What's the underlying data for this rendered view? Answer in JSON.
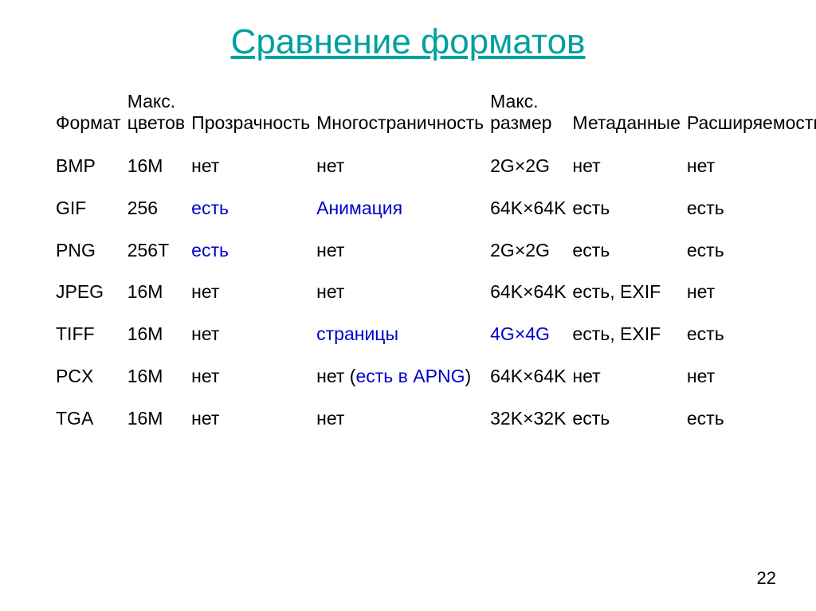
{
  "title": "Сравнение форматов",
  "page_number": "22",
  "headers": {
    "format": "Формат",
    "colors": "Макс. цветов",
    "transparency": "Прозрачность",
    "multipage": "Многостраничность",
    "size": "Макс. размер",
    "metadata": "Метаданные",
    "extensibility": "Расширяемость"
  },
  "rows": [
    {
      "format": "BMP",
      "colors": {
        "text": "16M",
        "hl": false
      },
      "trans": {
        "text": "нет",
        "hl": false
      },
      "multi": [
        {
          "text": "нет",
          "hl": false
        }
      ],
      "size": {
        "text": "2G×2G",
        "hl": false
      },
      "meta": {
        "text": "нет",
        "hl": false
      },
      "ext": {
        "text": "нет",
        "hl": false
      }
    },
    {
      "format": "GIF",
      "colors": {
        "text": "256",
        "hl": false
      },
      "trans": {
        "text": "есть",
        "hl": true
      },
      "multi": [
        {
          "text": "Анимация",
          "hl": true
        }
      ],
      "size": {
        "text": "64K×64K",
        "hl": false
      },
      "meta": {
        "text": "есть",
        "hl": false
      },
      "ext": {
        "text": "есть",
        "hl": false
      }
    },
    {
      "format": "PNG",
      "colors": {
        "text": "256T",
        "hl": false
      },
      "trans": {
        "text": "есть",
        "hl": true
      },
      "multi": [
        {
          "text": "нет",
          "hl": false
        }
      ],
      "size": {
        "text": "2G×2G",
        "hl": false
      },
      "meta": {
        "text": "есть",
        "hl": false
      },
      "ext": {
        "text": "есть",
        "hl": false
      }
    },
    {
      "format": "JPEG",
      "colors": {
        "text": "16M",
        "hl": false
      },
      "trans": {
        "text": "нет",
        "hl": false
      },
      "multi": [
        {
          "text": "нет",
          "hl": false
        }
      ],
      "size": {
        "text": "64K×64K",
        "hl": false
      },
      "meta": {
        "text": "есть, EXIF",
        "hl": false
      },
      "ext": {
        "text": "нет",
        "hl": false
      }
    },
    {
      "format": "TIFF",
      "colors": {
        "text": "16M",
        "hl": false
      },
      "trans": {
        "text": "нет",
        "hl": false
      },
      "multi": [
        {
          "text": "страницы",
          "hl": true
        }
      ],
      "size": {
        "text": "4G×4G",
        "hl": true
      },
      "meta": {
        "text": "есть, EXIF",
        "hl": false
      },
      "ext": {
        "text": "есть",
        "hl": false
      }
    },
    {
      "format": "PCX",
      "colors": {
        "text": "16M",
        "hl": false
      },
      "trans": {
        "text": "нет",
        "hl": false
      },
      "multi": [
        {
          "text": "нет (",
          "hl": false
        },
        {
          "text": "есть в APNG",
          "hl": true
        },
        {
          "text": ")",
          "hl": false
        }
      ],
      "size": {
        "text": "64K×64K",
        "hl": false
      },
      "meta": {
        "text": "нет",
        "hl": false
      },
      "ext": {
        "text": "нет",
        "hl": false
      }
    },
    {
      "format": "TGA",
      "colors": {
        "text": "16M",
        "hl": false
      },
      "trans": {
        "text": "нет",
        "hl": false
      },
      "multi": [
        {
          "text": "нет",
          "hl": false
        }
      ],
      "size": {
        "text": "32K×32K",
        "hl": false
      },
      "meta": {
        "text": "есть",
        "hl": false
      },
      "ext": {
        "text": "есть",
        "hl": false
      }
    }
  ],
  "style": {
    "highlight_color": "#0000cc",
    "title_color": "#00a0a0",
    "text_color": "#000000",
    "background_color": "#ffffff",
    "title_fontsize": 44,
    "cell_fontsize": 23
  }
}
